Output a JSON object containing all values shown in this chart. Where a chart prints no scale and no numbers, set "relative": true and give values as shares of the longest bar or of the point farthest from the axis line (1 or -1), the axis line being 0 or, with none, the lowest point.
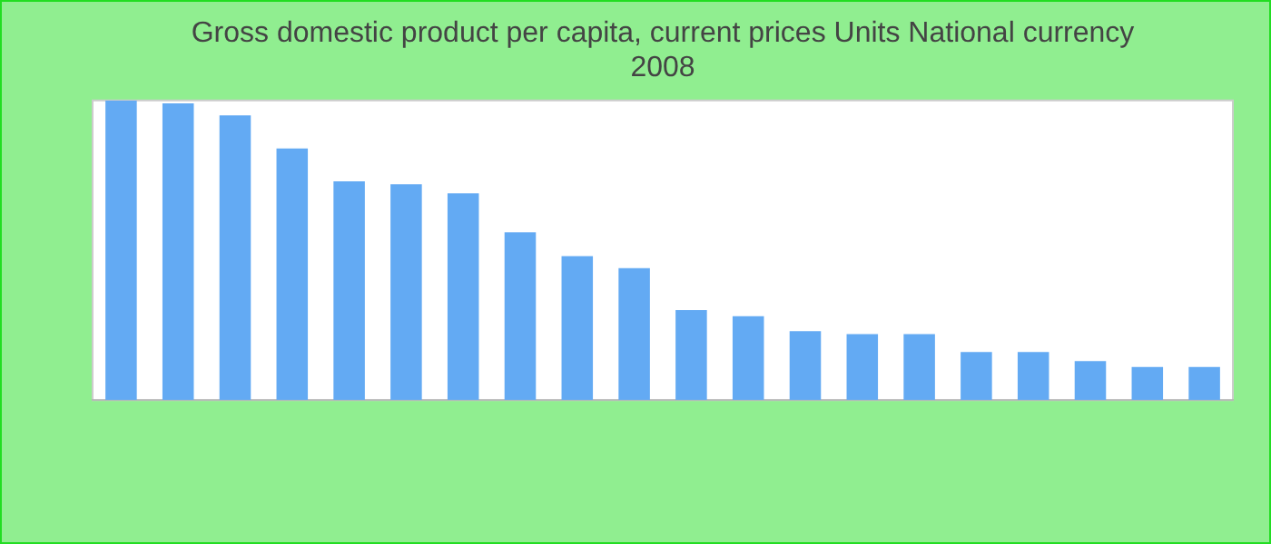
{
  "chart_data": {
    "type": "bar",
    "title": [
      "Gross domestic product per capita, current prices Units National currency",
      "2008"
    ],
    "categories": [
      null,
      null,
      null,
      null,
      null,
      null,
      null,
      null,
      null,
      null,
      null,
      null,
      null,
      null,
      null,
      null,
      null,
      null,
      null,
      null
    ],
    "values": [
      1,
      0.99,
      0.95,
      0.84,
      0.73,
      0.72,
      0.69,
      0.56,
      0.48,
      0.44,
      0.3,
      0.28,
      0.23,
      0.22,
      0.22,
      0.16,
      0.16,
      0.13,
      0.11,
      0.11
    ],
    "color": "#63aaf3",
    "relative": true,
    "legend": false
  }
}
